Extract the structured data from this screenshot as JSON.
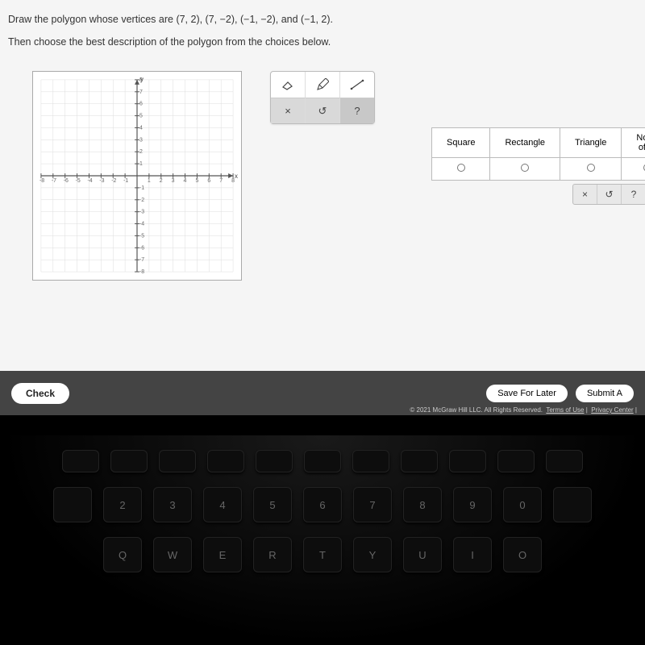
{
  "question": {
    "line1_pre": "Draw the polygon whose vertices are ",
    "vertices": "(7, 2), (7, −2), (−1, −2), and (−1, 2).",
    "line2": "Then choose the best description of the polygon from the choices below."
  },
  "graph": {
    "x_label": "x",
    "y_label": "y",
    "x_ticks": [
      -8,
      -7,
      -6,
      -5,
      -4,
      -3,
      -2,
      -1,
      1,
      2,
      3,
      4,
      5,
      6,
      7,
      8
    ],
    "y_ticks": [
      -8,
      -7,
      -6,
      -5,
      -4,
      -3,
      -2,
      -1,
      1,
      2,
      3,
      4,
      5,
      6,
      7,
      8
    ],
    "xlim": [
      -8,
      8
    ],
    "ylim": [
      -8,
      8
    ],
    "grid_color": "#dddddd",
    "axis_color": "#555555",
    "bg": "#ffffff"
  },
  "toolbox": {
    "row1": [
      "eraser",
      "pencil",
      "line"
    ],
    "row2_labels": [
      "×",
      "↺",
      "?"
    ]
  },
  "choices": [
    "Square",
    "Rectangle",
    "Triangle",
    "None of th"
  ],
  "mini_tools": [
    "×",
    "↺",
    "?"
  ],
  "footer": {
    "check": "Check",
    "save": "Save For Later",
    "submit": "Submit A",
    "copyright": "© 2021 McGraw Hill LLC. All Rights Reserved.",
    "links": [
      "Terms of Use",
      "Privacy Center"
    ]
  },
  "keyboard": {
    "fn": [
      "",
      "",
      "",
      "",
      "",
      "",
      "",
      "",
      "",
      "",
      ""
    ],
    "num_top": [
      "",
      "",
      "#",
      "",
      "%",
      "^",
      "&",
      "",
      "",
      "",
      ""
    ],
    "num": [
      "",
      "2",
      "3",
      "4",
      "5",
      "6",
      "7",
      "8",
      "9",
      "0",
      ""
    ],
    "qwerty": [
      "Q",
      "W",
      "E",
      "R",
      "T",
      "Y",
      "U",
      "I",
      "O"
    ]
  },
  "colors": {
    "page_bg": "#f5f5f5",
    "panel_border": "#bbbbbb",
    "footer_bg": "#444444"
  }
}
